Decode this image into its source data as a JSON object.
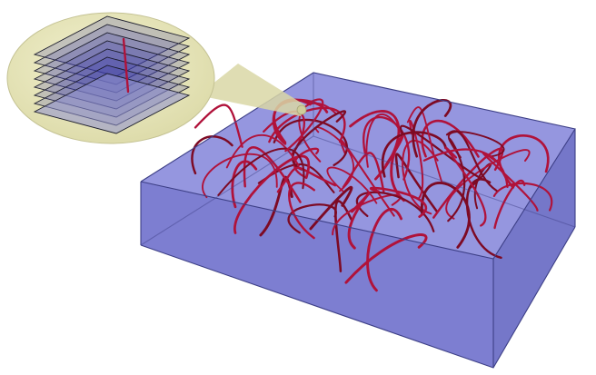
{
  "colors": {
    "background": "#ffffff",
    "box_face": "#7e7fd6",
    "box_edge": "#3d3f86",
    "fiber": "#b0123a",
    "fiber_dark": "#7d0a24",
    "callout_fill": "#e7e6b8",
    "callout_edge": "#b9b88a",
    "layer_fill": "#3a3ba8",
    "layer_edge": "#1b1c2c"
  },
  "icons": {
    "callout": "magnifier-callout-icon",
    "layer_stack": "layer-stack-icon"
  },
  "diagram": {
    "volume": "transparent-box",
    "fiber_count": 60,
    "inset_layer_count": 8
  }
}
